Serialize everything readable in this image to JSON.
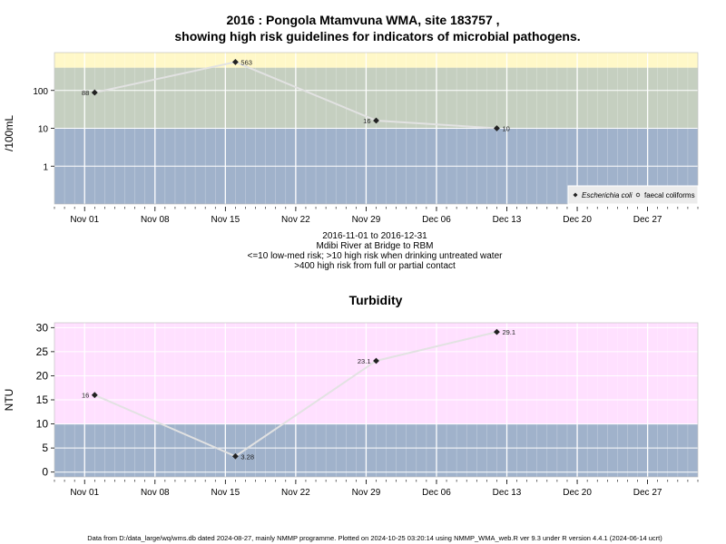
{
  "chart_data": [
    {
      "type": "scatter",
      "title": "2016 : Pongola Mtamvuna WMA, site 183757 ,",
      "subtitle": "showing high risk guidelines for indicators of microbial pathogens.",
      "ylabel": "/100mL",
      "xlabel_lines": [
        "2016-11-01 to 2016-12-31",
        "Mdibi River at Bridge to RBM",
        "<=10 low-med risk; >10 high risk when drinking untreated water",
        ">400 high risk from full or partial contact"
      ],
      "x_tick_labels": [
        "Nov 01",
        "Nov 08",
        "Nov 15",
        "Nov 22",
        "Nov 29",
        "Dec 06",
        "Dec 13",
        "Dec 20",
        "Dec 27"
      ],
      "x_ticks": [
        "2016-11-01",
        "2016-11-08",
        "2016-11-15",
        "2016-11-22",
        "2016-11-29",
        "2016-12-06",
        "2016-12-13",
        "2016-12-20",
        "2016-12-27"
      ],
      "xlim": [
        "2016-10-29",
        "2017-01-01"
      ],
      "y_scale": "log",
      "y_ticks": [
        1,
        10,
        100
      ],
      "y_tick_labels": [
        "1",
        "10",
        "100"
      ],
      "ylim": [
        0.1,
        1000
      ],
      "bands": [
        {
          "from": 0.1,
          "to": 10,
          "color": "#a0b2cb"
        },
        {
          "from": 10,
          "to": 400,
          "color": "#c5cfc0"
        },
        {
          "from": 400,
          "to": 1000,
          "color": "#fff8c8"
        }
      ],
      "grid": true,
      "legend_position": "bottom-right",
      "legend": [
        {
          "label": "Escherichia coli",
          "marker": "filled-diamond",
          "italic": true
        },
        {
          "label": "faecal coliforms",
          "marker": "open-circle",
          "italic": false
        }
      ],
      "series": [
        {
          "name": "Escherichia coli",
          "points": [
            {
              "date": "2016-11-02",
              "value": 88,
              "label": "88",
              "label_side": "left"
            },
            {
              "date": "2016-11-16",
              "value": 563,
              "label": "563",
              "label_side": "right"
            },
            {
              "date": "2016-11-30",
              "value": 16,
              "label": "16",
              "label_side": "left"
            },
            {
              "date": "2016-12-12",
              "value": 10,
              "label": "10",
              "label_side": "right"
            }
          ]
        }
      ],
      "colors": {
        "point": "#222222",
        "line": "#e2e2e2",
        "grid": "#ffffff"
      }
    },
    {
      "type": "scatter",
      "title": "Turbidity",
      "ylabel": "NTU",
      "x_tick_labels": [
        "Nov 01",
        "Nov 08",
        "Nov 15",
        "Nov 22",
        "Nov 29",
        "Dec 06",
        "Dec 13",
        "Dec 20",
        "Dec 27"
      ],
      "x_ticks": [
        "2016-11-01",
        "2016-11-08",
        "2016-11-15",
        "2016-11-22",
        "2016-11-29",
        "2016-12-06",
        "2016-12-13",
        "2016-12-20",
        "2016-12-27"
      ],
      "xlim": [
        "2016-10-29",
        "2017-01-01"
      ],
      "y_scale": "linear",
      "y_ticks": [
        0,
        5,
        10,
        15,
        20,
        25,
        30
      ],
      "y_tick_labels": [
        "0",
        "5",
        "10",
        "15",
        "20",
        "25",
        "30"
      ],
      "ylim": [
        -1,
        31
      ],
      "bands": [
        {
          "from": -1,
          "to": 10,
          "color": "#a0b2cb"
        },
        {
          "from": 10,
          "to": 31,
          "color": "#ffe0ff"
        }
      ],
      "grid": true,
      "series": [
        {
          "name": "Turbidity",
          "points": [
            {
              "date": "2016-11-02",
              "value": 16,
              "label": "16",
              "label_side": "left"
            },
            {
              "date": "2016-11-16",
              "value": 3.28,
              "label": "3.28",
              "label_side": "right"
            },
            {
              "date": "2016-11-30",
              "value": 23.1,
              "label": "23.1",
              "label_side": "left"
            },
            {
              "date": "2016-12-12",
              "value": 29.1,
              "label": "29.1",
              "label_side": "right"
            }
          ]
        }
      ],
      "colors": {
        "point": "#222222",
        "line": "#e2e2e2",
        "grid": "#ffffff"
      }
    }
  ],
  "footer": "Data from D:/data_large/wq/wms.db dated 2024-08-27, mainly NMMP programme. Plotted on 2024-10-25 03:20:14 using NMMP_WMA_web.R ver 9.3 under R version 4.4.1 (2024-06-14 ucrt)"
}
